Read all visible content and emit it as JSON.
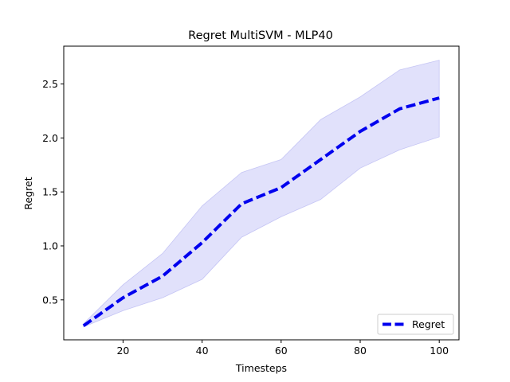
{
  "chart_data": {
    "type": "line",
    "title": "Regret MultiSVM - MLP40",
    "xlabel": "Timesteps",
    "ylabel": "Regret",
    "xlim": [
      5,
      105
    ],
    "ylim": [
      0.13,
      2.85
    ],
    "xticks": [
      20,
      40,
      60,
      80,
      100
    ],
    "yticks": [
      0.5,
      1.0,
      1.5,
      2.0,
      2.5
    ],
    "ytick_labels": [
      "0.5",
      "1.0",
      "1.5",
      "2.0",
      "2.5"
    ],
    "grid": false,
    "legend_position": "bottom-right",
    "series": [
      {
        "name": "Regret",
        "color": "#0000ee",
        "line_style": "dashed",
        "band_color": "#c9c9f7",
        "x": [
          10,
          20,
          30,
          40,
          50,
          60,
          70,
          80,
          90,
          100
        ],
        "y": [
          0.26,
          0.52,
          0.72,
          1.03,
          1.39,
          1.54,
          1.8,
          2.06,
          2.27,
          2.37
        ],
        "lower": [
          0.25,
          0.4,
          0.52,
          0.69,
          1.08,
          1.27,
          1.43,
          1.72,
          1.89,
          2.01
        ],
        "upper": [
          0.28,
          0.64,
          0.93,
          1.37,
          1.68,
          1.8,
          2.17,
          2.38,
          2.63,
          2.72
        ]
      }
    ]
  }
}
